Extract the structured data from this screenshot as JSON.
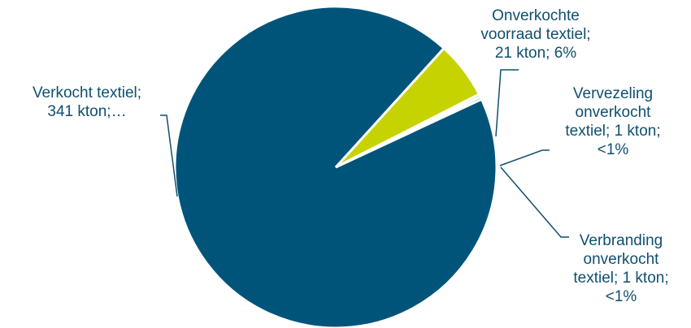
{
  "chart_data": {
    "type": "pie",
    "title": "",
    "slices": [
      {
        "label": "Verkocht textiel; 341 kton;…",
        "display_label": "Verkocht textiel;\n341 kton;…",
        "value": 341,
        "color": "#00547a"
      },
      {
        "label": "Onverkochte voorraad textiel; 21 kton; 6%",
        "display_label": "Onverkochte\nvoorraad textiel;\n21 kton; 6%",
        "value": 21,
        "color": "#c7d300"
      },
      {
        "label": "Vervezeling onverkocht textiel; 1 kton; <1%",
        "display_label": "Vervezeling\nonverkocht\ntextiel; 1 kton;\n<1%",
        "value": 1,
        "color": "#6f8a2f"
      },
      {
        "label": "Verbranding onverkocht textiel; 1 kton; <1%",
        "display_label": "Verbranding\nonverkocht\ntextiel; 1 kton;\n<1%",
        "value": 1,
        "color": "#00547a"
      }
    ],
    "legend": "none"
  }
}
